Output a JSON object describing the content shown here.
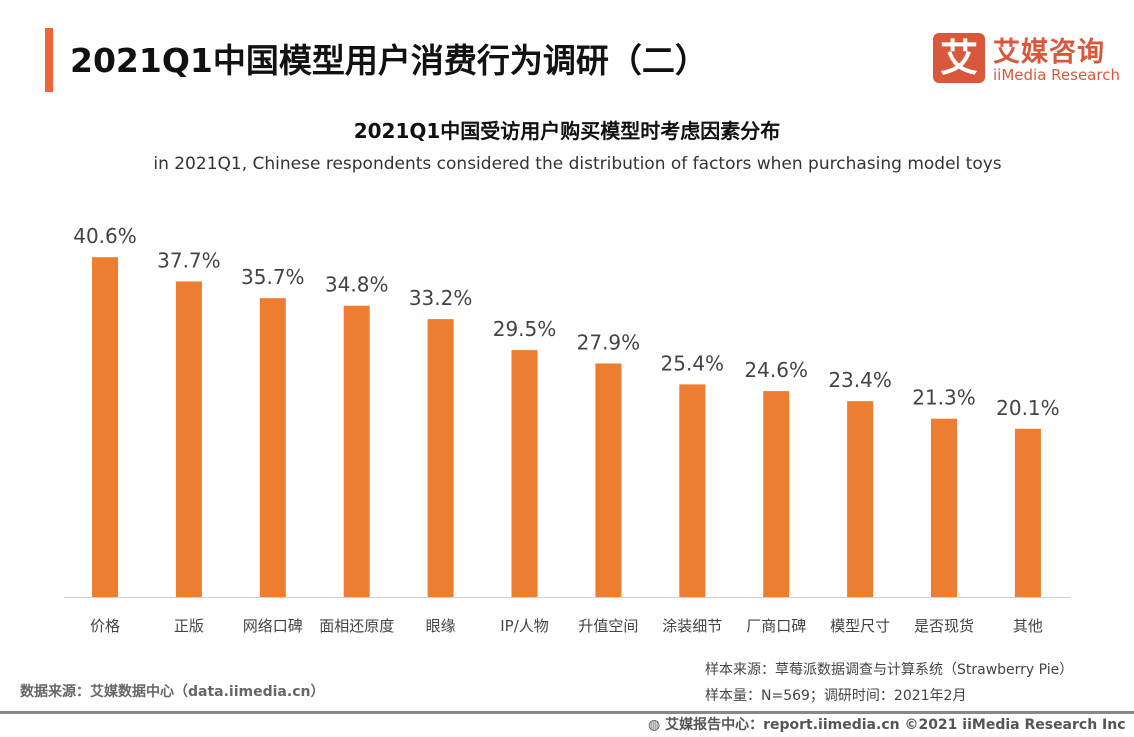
{
  "header": {
    "title": "2021Q1中国模型用户消费行为调研（二）",
    "accent_color": "#f0643c"
  },
  "logo": {
    "glyph": "艾",
    "cn": "艾媒咨询",
    "en": "iiMedia Research",
    "color": "#d9583b"
  },
  "chart_data": {
    "type": "bar",
    "title": "2021Q1中国受访用户购买模型时考虑因素分布",
    "subtitle": "in 2021Q1, Chinese respondents considered the distribution of factors when purchasing model toys",
    "categories": [
      "价格",
      "正版",
      "网络口碑",
      "面相还原度",
      "眼缘",
      "IP/人物",
      "升值空间",
      "涂装细节",
      "厂商口碑",
      "模型尺寸",
      "是否现货",
      "其他"
    ],
    "values": [
      40.6,
      37.7,
      35.7,
      34.8,
      33.2,
      29.5,
      27.9,
      25.4,
      24.6,
      23.4,
      21.3,
      20.1
    ],
    "labels": [
      "40.6%",
      "37.7%",
      "35.7%",
      "34.8%",
      "33.2%",
      "29.5%",
      "27.9%",
      "25.4%",
      "24.6%",
      "23.4%",
      "21.3%",
      "20.1%"
    ],
    "unit": "%",
    "bar_color": "#ED7D31",
    "grid": false,
    "ylim": [
      0,
      71
    ]
  },
  "footer": {
    "source": "数据来源：艾媒数据中心（data.iimedia.cn）",
    "sample_source": "样本来源：草莓派数据调查与计算系统（Strawberry Pie）",
    "sample_size": "样本量：N=569；调研时间：2021年2月",
    "report": "艾媒报告中心：report.iimedia.cn   ©2021  iiMedia Research  Inc"
  }
}
